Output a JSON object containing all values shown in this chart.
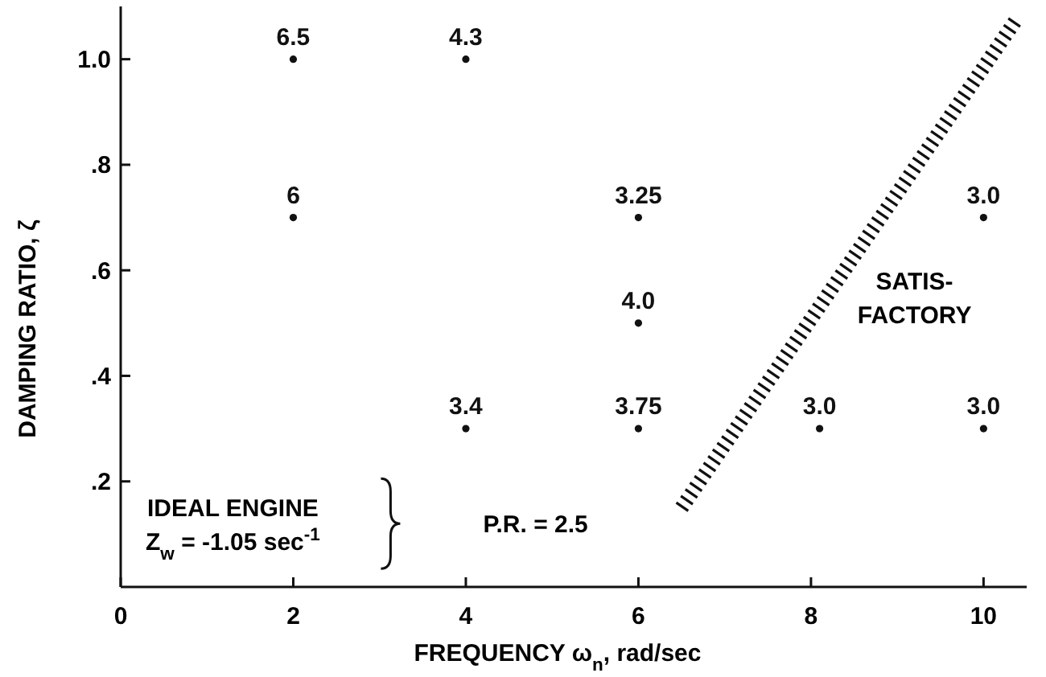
{
  "chart_data": {
    "type": "scatter",
    "xlabel": "FREQUENCY ω$_{n}$, rad/sec",
    "ylabel": "DAMPING RATIO, ζ",
    "xlim": [
      0,
      10.5
    ],
    "ylim": [
      0,
      1.1
    ],
    "xticks": [
      0,
      2,
      4,
      6,
      8,
      10
    ],
    "yticks": [
      {
        "value": 0.2,
        "label": ".2"
      },
      {
        "value": 0.4,
        "label": ".4"
      },
      {
        "value": 0.6,
        "label": ".6"
      },
      {
        "value": 0.8,
        "label": ".8"
      },
      {
        "value": 1.0,
        "label": "1.0"
      }
    ],
    "grid": false,
    "series": [
      {
        "color": "#111111",
        "marker": "circle",
        "x": [
          2,
          4,
          2,
          6,
          10,
          6,
          4,
          6,
          8.1,
          10
        ],
        "values": [
          1.0,
          1.0,
          0.7,
          0.7,
          0.7,
          0.5,
          0.3,
          0.3,
          0.3,
          0.3
        ]
      },
      {
        "type": "line",
        "color": "#111111",
        "line_style": "dashed",
        "x": [
          6.5,
          10.4
        ],
        "values": [
          0.15,
          1.08
        ]
      }
    ],
    "annotations": [
      {
        "text": "6.5",
        "x": 2,
        "y": 1.0
      },
      {
        "text": "4.3",
        "x": 4,
        "y": 1.0
      },
      {
        "text": "6",
        "x": 2,
        "y": 0.7
      },
      {
        "text": "3.25",
        "x": 6,
        "y": 0.7
      },
      {
        "text": "3.0",
        "x": 10,
        "y": 0.7
      },
      {
        "text": "4.0",
        "x": 6,
        "y": 0.5
      },
      {
        "text": "3.4",
        "x": 4,
        "y": 0.3
      },
      {
        "text": "3.75",
        "x": 6,
        "y": 0.3
      },
      {
        "text": "3.0",
        "x": 8.1,
        "y": 0.3
      },
      {
        "text": "3.0",
        "x": 10,
        "y": 0.3
      },
      "SATIS-\nFACTORY",
      "IDEAL ENGINE\nZ$_{w}$ = -1.05 sec$^{-1}$",
      "P.R. = 2.5"
    ]
  }
}
